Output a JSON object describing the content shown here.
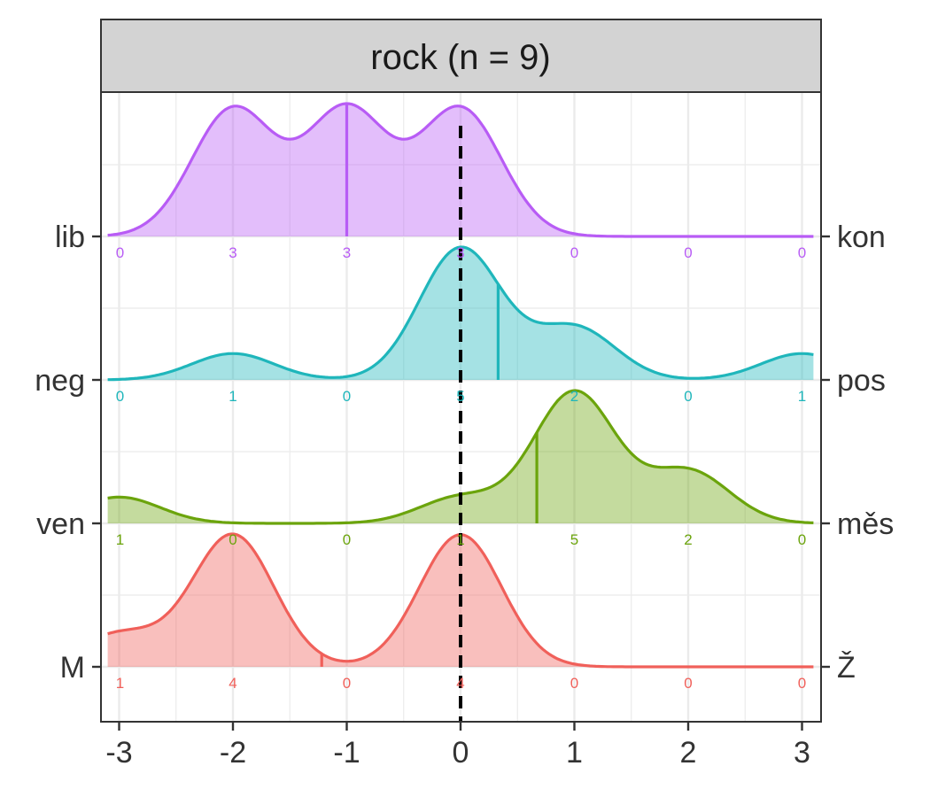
{
  "chart_data": {
    "type": "ridgeline",
    "panel_title": "rock (n = 9)",
    "x_ticks": [
      -3,
      -2,
      -1,
      0,
      1,
      2,
      3
    ],
    "x_tick_labels": [
      "-3",
      "-2",
      "-1",
      "0",
      "1",
      "2",
      "3"
    ],
    "xlim": [
      -3.1,
      3.1
    ],
    "reference_line_x": 0,
    "grid": true,
    "series": [
      {
        "left_label": "lib",
        "right_label": "kon",
        "color": "#B85CF5",
        "x": [
          -3,
          -2,
          -1,
          0,
          1,
          2,
          3
        ],
        "counts": [
          "0",
          "3",
          "3",
          "3",
          "0",
          "0",
          "0"
        ],
        "mean": -1.0
      },
      {
        "left_label": "neg",
        "right_label": "pos",
        "color": "#1FB6BB",
        "x": [
          -3,
          -2,
          -1,
          0,
          1,
          2,
          3
        ],
        "counts": [
          "0",
          "1",
          "0",
          "5",
          "2",
          "0",
          "1"
        ],
        "mean": 0.33
      },
      {
        "left_label": "ven",
        "right_label": "měs",
        "color": "#6BA40C",
        "x": [
          -3,
          -2,
          -1,
          0,
          1,
          2,
          3
        ],
        "counts": [
          "1",
          "0",
          "0",
          "1",
          "5",
          "2",
          "0"
        ],
        "mean": 0.67
      },
      {
        "left_label": "M",
        "right_label": "Ž",
        "color": "#F0605A",
        "x": [
          -3,
          -2,
          -1,
          0,
          1,
          2,
          3
        ],
        "counts": [
          "1",
          "4",
          "0",
          "4",
          "0",
          "0",
          "0"
        ],
        "mean": -1.22
      }
    ]
  }
}
